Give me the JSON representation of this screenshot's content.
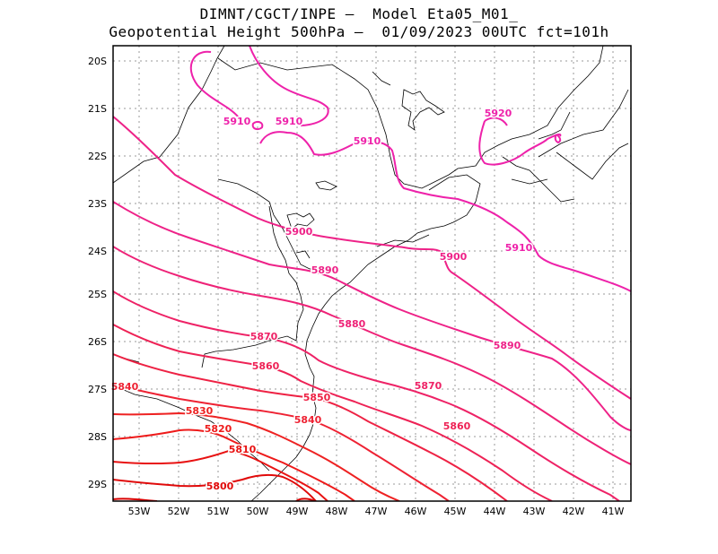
{
  "title": {
    "line1": "DIMNT/CGCT/INPE –  Model Eta05_M01_",
    "line2": "Geopotential Height 500hPa –  01/09/2023 00UTC fct=101h"
  },
  "latitudes": [
    "20S",
    "21S",
    "22S",
    "23S",
    "24S",
    "25S",
    "26S",
    "27S",
    "28S",
    "29S"
  ],
  "longitudes": [
    "53W",
    "52W",
    "51W",
    "50W",
    "49W",
    "48W",
    "47W",
    "46W",
    "45W",
    "44W",
    "43W",
    "42W",
    "41W"
  ],
  "contour_labels": [
    {
      "text": "5920",
      "color": "#ee22aa"
    },
    {
      "text": "5910",
      "color": "#ee22aa"
    },
    {
      "text": "5910",
      "color": "#ee22aa"
    },
    {
      "text": "5910",
      "color": "#ee22aa"
    },
    {
      "text": "5910",
      "color": "#ee22aa"
    },
    {
      "text": "5900",
      "color": "#ee2288"
    },
    {
      "text": "5900",
      "color": "#ee2288"
    },
    {
      "text": "5890",
      "color": "#ee2288"
    },
    {
      "text": "5890",
      "color": "#ee2288"
    },
    {
      "text": "5880",
      "color": "#ee2277"
    },
    {
      "text": "5870",
      "color": "#ee2266"
    },
    {
      "text": "5870",
      "color": "#ee2266"
    },
    {
      "text": "5860",
      "color": "#ee2255"
    },
    {
      "text": "5860",
      "color": "#ee2255"
    },
    {
      "text": "5850",
      "color": "#ee2244"
    },
    {
      "text": "5840",
      "color": "#ee2233"
    },
    {
      "text": "5840",
      "color": "#ee2233"
    },
    {
      "text": "5830",
      "color": "#ee2222"
    },
    {
      "text": "5820",
      "color": "#ee1a1a"
    },
    {
      "text": "5810",
      "color": "#e81212"
    },
    {
      "text": "5800",
      "color": "#e00a0a"
    }
  ]
}
